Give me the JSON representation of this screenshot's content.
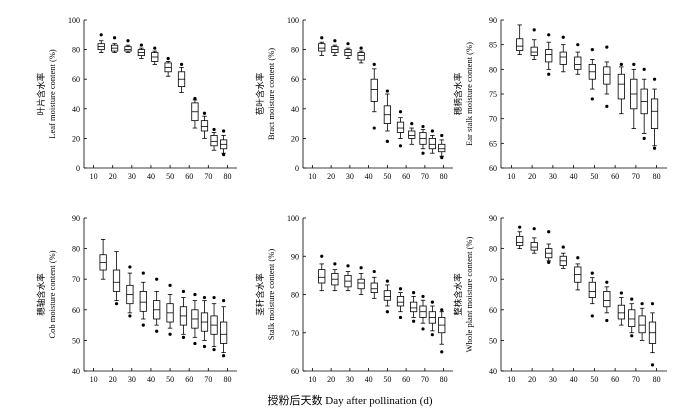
{
  "figure": {
    "shared_xlabel": "授粉后天数 Day after pollination (d)"
  },
  "chart_data": [
    {
      "type": "box",
      "ylabel_cn": "叶片含水率",
      "ylabel_en": "Leaf moisture content (%)",
      "ylim": [
        0,
        100
      ],
      "yticks": [
        0,
        20,
        40,
        60,
        80,
        100
      ],
      "xlim": [
        5,
        85
      ],
      "xticks": [
        10,
        20,
        30,
        40,
        50,
        60,
        70,
        80
      ],
      "boxes": [
        {
          "x": 14,
          "min": 78,
          "q1": 80,
          "median": 82,
          "q3": 84,
          "max": 86,
          "outliers": [
            90
          ]
        },
        {
          "x": 21,
          "min": 78,
          "q1": 79,
          "median": 81,
          "q3": 83,
          "max": 84,
          "outliers": [
            88
          ]
        },
        {
          "x": 28,
          "min": 78,
          "q1": 79,
          "median": 80,
          "q3": 82,
          "max": 83,
          "outliers": [
            86
          ]
        },
        {
          "x": 35,
          "min": 74,
          "q1": 76,
          "median": 78,
          "q3": 80,
          "max": 81,
          "outliers": [
            83
          ]
        },
        {
          "x": 42,
          "min": 70,
          "q1": 72,
          "median": 75,
          "q3": 78,
          "max": 79,
          "outliers": [
            81
          ]
        },
        {
          "x": 49,
          "min": 62,
          "q1": 65,
          "median": 68,
          "q3": 71,
          "max": 72,
          "outliers": [
            74
          ]
        },
        {
          "x": 56,
          "min": 51,
          "q1": 55,
          "median": 60,
          "q3": 65,
          "max": 68,
          "outliers": [
            70
          ]
        },
        {
          "x": 63,
          "min": 27,
          "q1": 32,
          "median": 38,
          "q3": 44,
          "max": 46,
          "outliers": [
            47
          ]
        },
        {
          "x": 68,
          "min": 20,
          "q1": 25,
          "median": 28,
          "q3": 32,
          "max": 35,
          "outliers": [
            37
          ]
        },
        {
          "x": 73,
          "min": 12,
          "q1": 15,
          "median": 18,
          "q3": 22,
          "max": 24,
          "outliers": [
            26
          ]
        },
        {
          "x": 78,
          "min": 10,
          "q1": 13,
          "median": 16,
          "q3": 19,
          "max": 22,
          "outliers": [
            25,
            9
          ]
        }
      ]
    },
    {
      "type": "box",
      "ylabel_cn": "苞叶含水率",
      "ylabel_en": "Bract moisture content (%)",
      "ylim": [
        0,
        100
      ],
      "yticks": [
        0,
        20,
        40,
        60,
        80,
        100
      ],
      "xlim": [
        5,
        85
      ],
      "xticks": [
        10,
        20,
        30,
        40,
        50,
        60,
        70,
        80
      ],
      "boxes": [
        {
          "x": 15,
          "min": 76,
          "q1": 79,
          "median": 81,
          "q3": 84,
          "max": 85,
          "outliers": [
            88
          ]
        },
        {
          "x": 22,
          "min": 76,
          "q1": 78,
          "median": 80,
          "q3": 82,
          "max": 83,
          "outliers": [
            86
          ]
        },
        {
          "x": 29,
          "min": 74,
          "q1": 76,
          "median": 78,
          "q3": 80,
          "max": 81,
          "outliers": [
            84
          ]
        },
        {
          "x": 36,
          "min": 71,
          "q1": 73,
          "median": 76,
          "q3": 78,
          "max": 79,
          "outliers": [
            81
          ]
        },
        {
          "x": 43,
          "min": 38,
          "q1": 45,
          "median": 53,
          "q3": 60,
          "max": 67,
          "outliers": [
            70,
            27
          ]
        },
        {
          "x": 50,
          "min": 25,
          "q1": 30,
          "median": 36,
          "q3": 42,
          "max": 50,
          "outliers": [
            52,
            18
          ]
        },
        {
          "x": 57,
          "min": 20,
          "q1": 24,
          "median": 27,
          "q3": 31,
          "max": 34,
          "outliers": [
            38,
            15
          ]
        },
        {
          "x": 63,
          "min": 16,
          "q1": 20,
          "median": 22,
          "q3": 25,
          "max": 27,
          "outliers": [
            30
          ]
        },
        {
          "x": 69,
          "min": 13,
          "q1": 16,
          "median": 20,
          "q3": 24,
          "max": 26,
          "outliers": [
            28,
            10
          ]
        },
        {
          "x": 74,
          "min": 10,
          "q1": 13,
          "median": 16,
          "q3": 20,
          "max": 22,
          "outliers": [
            25
          ]
        },
        {
          "x": 79,
          "min": 8,
          "q1": 11,
          "median": 13,
          "q3": 16,
          "max": 19,
          "outliers": [
            22,
            7
          ]
        }
      ]
    },
    {
      "type": "box",
      "ylabel_cn": "穗柄含水率",
      "ylabel_en": "Ear stalk moisture content (%)",
      "ylim": [
        60,
        90
      ],
      "yticks": [
        60,
        65,
        70,
        75,
        80,
        85,
        90
      ],
      "xlim": [
        5,
        85
      ],
      "xticks": [
        10,
        20,
        30,
        40,
        50,
        60,
        70,
        80
      ],
      "boxes": [
        {
          "x": 14,
          "min": 83,
          "q1": 83.8,
          "median": 84.7,
          "q3": 86.2,
          "max": 89,
          "outliers": []
        },
        {
          "x": 21,
          "min": 82,
          "q1": 82.8,
          "median": 83.5,
          "q3": 84.5,
          "max": 86,
          "outliers": [
            88
          ]
        },
        {
          "x": 28,
          "min": 80,
          "q1": 81.5,
          "median": 83,
          "q3": 84,
          "max": 85.5,
          "outliers": [
            87,
            79
          ]
        },
        {
          "x": 35,
          "min": 79.5,
          "q1": 81,
          "median": 82.5,
          "q3": 83.5,
          "max": 85,
          "outliers": [
            86.5
          ]
        },
        {
          "x": 42,
          "min": 79,
          "q1": 80,
          "median": 81,
          "q3": 82.5,
          "max": 83.5,
          "outliers": [
            85
          ]
        },
        {
          "x": 49,
          "min": 76,
          "q1": 78,
          "median": 79.5,
          "q3": 81,
          "max": 82,
          "outliers": [
            84,
            74
          ]
        },
        {
          "x": 56,
          "min": 75,
          "q1": 77,
          "median": 79,
          "q3": 80.5,
          "max": 81.5,
          "outliers": [
            84.5,
            72.5
          ]
        },
        {
          "x": 63,
          "min": 71,
          "q1": 74,
          "median": 77,
          "q3": 79,
          "max": 80.5,
          "outliers": [
            81
          ]
        },
        {
          "x": 69,
          "min": 68,
          "q1": 72,
          "median": 75,
          "q3": 78,
          "max": 80,
          "outliers": [
            81
          ]
        },
        {
          "x": 74,
          "min": 67,
          "q1": 71,
          "median": 73.5,
          "q3": 76,
          "max": 78,
          "outliers": [
            80,
            66
          ]
        },
        {
          "x": 79,
          "min": 64.5,
          "q1": 68,
          "median": 71.5,
          "q3": 74,
          "max": 76,
          "outliers": [
            78,
            64
          ]
        }
      ]
    },
    {
      "type": "box",
      "ylabel_cn": "穗轴含水率",
      "ylabel_en": "Cob moisture content (%)",
      "ylim": [
        40,
        90
      ],
      "yticks": [
        40,
        50,
        60,
        70,
        80,
        90
      ],
      "xlim": [
        5,
        85
      ],
      "xticks": [
        10,
        20,
        30,
        40,
        50,
        60,
        70,
        80
      ],
      "boxes": [
        {
          "x": 15,
          "min": 70,
          "q1": 73,
          "median": 75.5,
          "q3": 78,
          "max": 83,
          "outliers": []
        },
        {
          "x": 22,
          "min": 63,
          "q1": 66,
          "median": 69,
          "q3": 73,
          "max": 79,
          "outliers": [
            62
          ]
        },
        {
          "x": 29,
          "min": 59,
          "q1": 62,
          "median": 65,
          "q3": 68,
          "max": 72,
          "outliers": [
            74,
            58
          ]
        },
        {
          "x": 36,
          "min": 57,
          "q1": 59.5,
          "median": 62.5,
          "q3": 66,
          "max": 69,
          "outliers": [
            72,
            55
          ]
        },
        {
          "x": 43,
          "min": 55,
          "q1": 57,
          "median": 60,
          "q3": 63,
          "max": 66,
          "outliers": [
            70,
            53
          ]
        },
        {
          "x": 50,
          "min": 54,
          "q1": 56,
          "median": 59,
          "q3": 62,
          "max": 65,
          "outliers": [
            68,
            52
          ]
        },
        {
          "x": 57,
          "min": 52,
          "q1": 55,
          "median": 58,
          "q3": 61,
          "max": 64,
          "outliers": [
            66,
            51
          ]
        },
        {
          "x": 63,
          "min": 51,
          "q1": 54,
          "median": 57,
          "q3": 60,
          "max": 63,
          "outliers": [
            65,
            49
          ]
        },
        {
          "x": 68,
          "min": 50,
          "q1": 53,
          "median": 56,
          "q3": 59,
          "max": 63,
          "outliers": [
            64,
            48
          ]
        },
        {
          "x": 73,
          "min": 48,
          "q1": 52,
          "median": 55,
          "q3": 58,
          "max": 62,
          "outliers": [
            64,
            47
          ]
        },
        {
          "x": 78,
          "min": 46,
          "q1": 49,
          "median": 52,
          "q3": 56,
          "max": 61,
          "outliers": [
            63,
            45
          ]
        }
      ]
    },
    {
      "type": "box",
      "ylabel_cn": "茎秆含水率",
      "ylabel_en": "Stalk moisture content (%)",
      "ylim": [
        60,
        100
      ],
      "yticks": [
        60,
        70,
        80,
        90,
        100
      ],
      "xlim": [
        5,
        85
      ],
      "xticks": [
        10,
        20,
        30,
        40,
        50,
        60,
        70,
        80
      ],
      "boxes": [
        {
          "x": 15,
          "min": 81,
          "q1": 83,
          "median": 84.5,
          "q3": 86.5,
          "max": 88,
          "outliers": [
            90
          ]
        },
        {
          "x": 22,
          "min": 81,
          "q1": 82.5,
          "median": 84,
          "q3": 85.5,
          "max": 86.5,
          "outliers": [
            88
          ]
        },
        {
          "x": 29,
          "min": 81,
          "q1": 82,
          "median": 83.5,
          "q3": 85,
          "max": 86,
          "outliers": [
            87.5
          ]
        },
        {
          "x": 36,
          "min": 80,
          "q1": 81.5,
          "median": 83,
          "q3": 84,
          "max": 85.5,
          "outliers": [
            87
          ]
        },
        {
          "x": 43,
          "min": 79,
          "q1": 80.5,
          "median": 81.5,
          "q3": 83,
          "max": 84.5,
          "outliers": [
            86
          ]
        },
        {
          "x": 50,
          "min": 77,
          "q1": 78.5,
          "median": 79.5,
          "q3": 81,
          "max": 82.5,
          "outliers": [
            83.5,
            75.5
          ]
        },
        {
          "x": 57,
          "min": 75.5,
          "q1": 77,
          "median": 78,
          "q3": 79.5,
          "max": 80.5,
          "outliers": [
            81.5,
            74
          ]
        },
        {
          "x": 64,
          "min": 74,
          "q1": 75.5,
          "median": 76.5,
          "q3": 78,
          "max": 79.5,
          "outliers": [
            80.5,
            73
          ]
        },
        {
          "x": 69,
          "min": 72.5,
          "q1": 74,
          "median": 75.5,
          "q3": 77,
          "max": 78.5,
          "outliers": [
            79.5,
            71
          ]
        },
        {
          "x": 74,
          "min": 70.5,
          "q1": 72.5,
          "median": 74,
          "q3": 75.5,
          "max": 77,
          "outliers": [
            78,
            69.5
          ]
        },
        {
          "x": 79,
          "min": 67,
          "q1": 70,
          "median": 72,
          "q3": 74,
          "max": 75.5,
          "outliers": [
            76,
            65
          ]
        }
      ]
    },
    {
      "type": "box",
      "ylabel_cn": "整株含水率",
      "ylabel_en": "Whole plant moisture content (%)",
      "ylim": [
        40,
        90
      ],
      "yticks": [
        40,
        50,
        60,
        70,
        80,
        90
      ],
      "xlim": [
        5,
        85
      ],
      "xticks": [
        10,
        20,
        30,
        40,
        50,
        60,
        70,
        80
      ],
      "boxes": [
        {
          "x": 14,
          "min": 80,
          "q1": 81,
          "median": 82,
          "q3": 84,
          "max": 85.5,
          "outliers": [
            87
          ]
        },
        {
          "x": 21,
          "min": 78.5,
          "q1": 79.5,
          "median": 80.5,
          "q3": 82,
          "max": 83.5,
          "outliers": [
            86.5
          ]
        },
        {
          "x": 28,
          "min": 76,
          "q1": 77,
          "median": 78.5,
          "q3": 80,
          "max": 81.5,
          "outliers": [
            85.5,
            75.5
          ]
        },
        {
          "x": 35,
          "min": 73.5,
          "q1": 74.5,
          "median": 76,
          "q3": 77.5,
          "max": 78.5,
          "outliers": [
            80.5
          ]
        },
        {
          "x": 42,
          "min": 66.5,
          "q1": 69,
          "median": 71.5,
          "q3": 74,
          "max": 75,
          "outliers": [
            77
          ]
        },
        {
          "x": 49,
          "min": 62,
          "q1": 64,
          "median": 66,
          "q3": 69,
          "max": 70.5,
          "outliers": [
            72,
            58
          ]
        },
        {
          "x": 56,
          "min": 59,
          "q1": 61,
          "median": 63,
          "q3": 66,
          "max": 67.5,
          "outliers": [
            69,
            56.5
          ]
        },
        {
          "x": 63,
          "min": 55,
          "q1": 57,
          "median": 59,
          "q3": 61.5,
          "max": 64,
          "outliers": [
            65.5
          ]
        },
        {
          "x": 68,
          "min": 52.5,
          "q1": 54.5,
          "median": 57,
          "q3": 60,
          "max": 62,
          "outliers": [
            63.5,
            51.5
          ]
        },
        {
          "x": 73,
          "min": 50,
          "q1": 52.5,
          "median": 55,
          "q3": 58,
          "max": 60.5,
          "outliers": [
            62
          ]
        },
        {
          "x": 78,
          "min": 46,
          "q1": 49,
          "median": 52.5,
          "q3": 56,
          "max": 59,
          "outliers": [
            62,
            42
          ]
        }
      ]
    }
  ]
}
